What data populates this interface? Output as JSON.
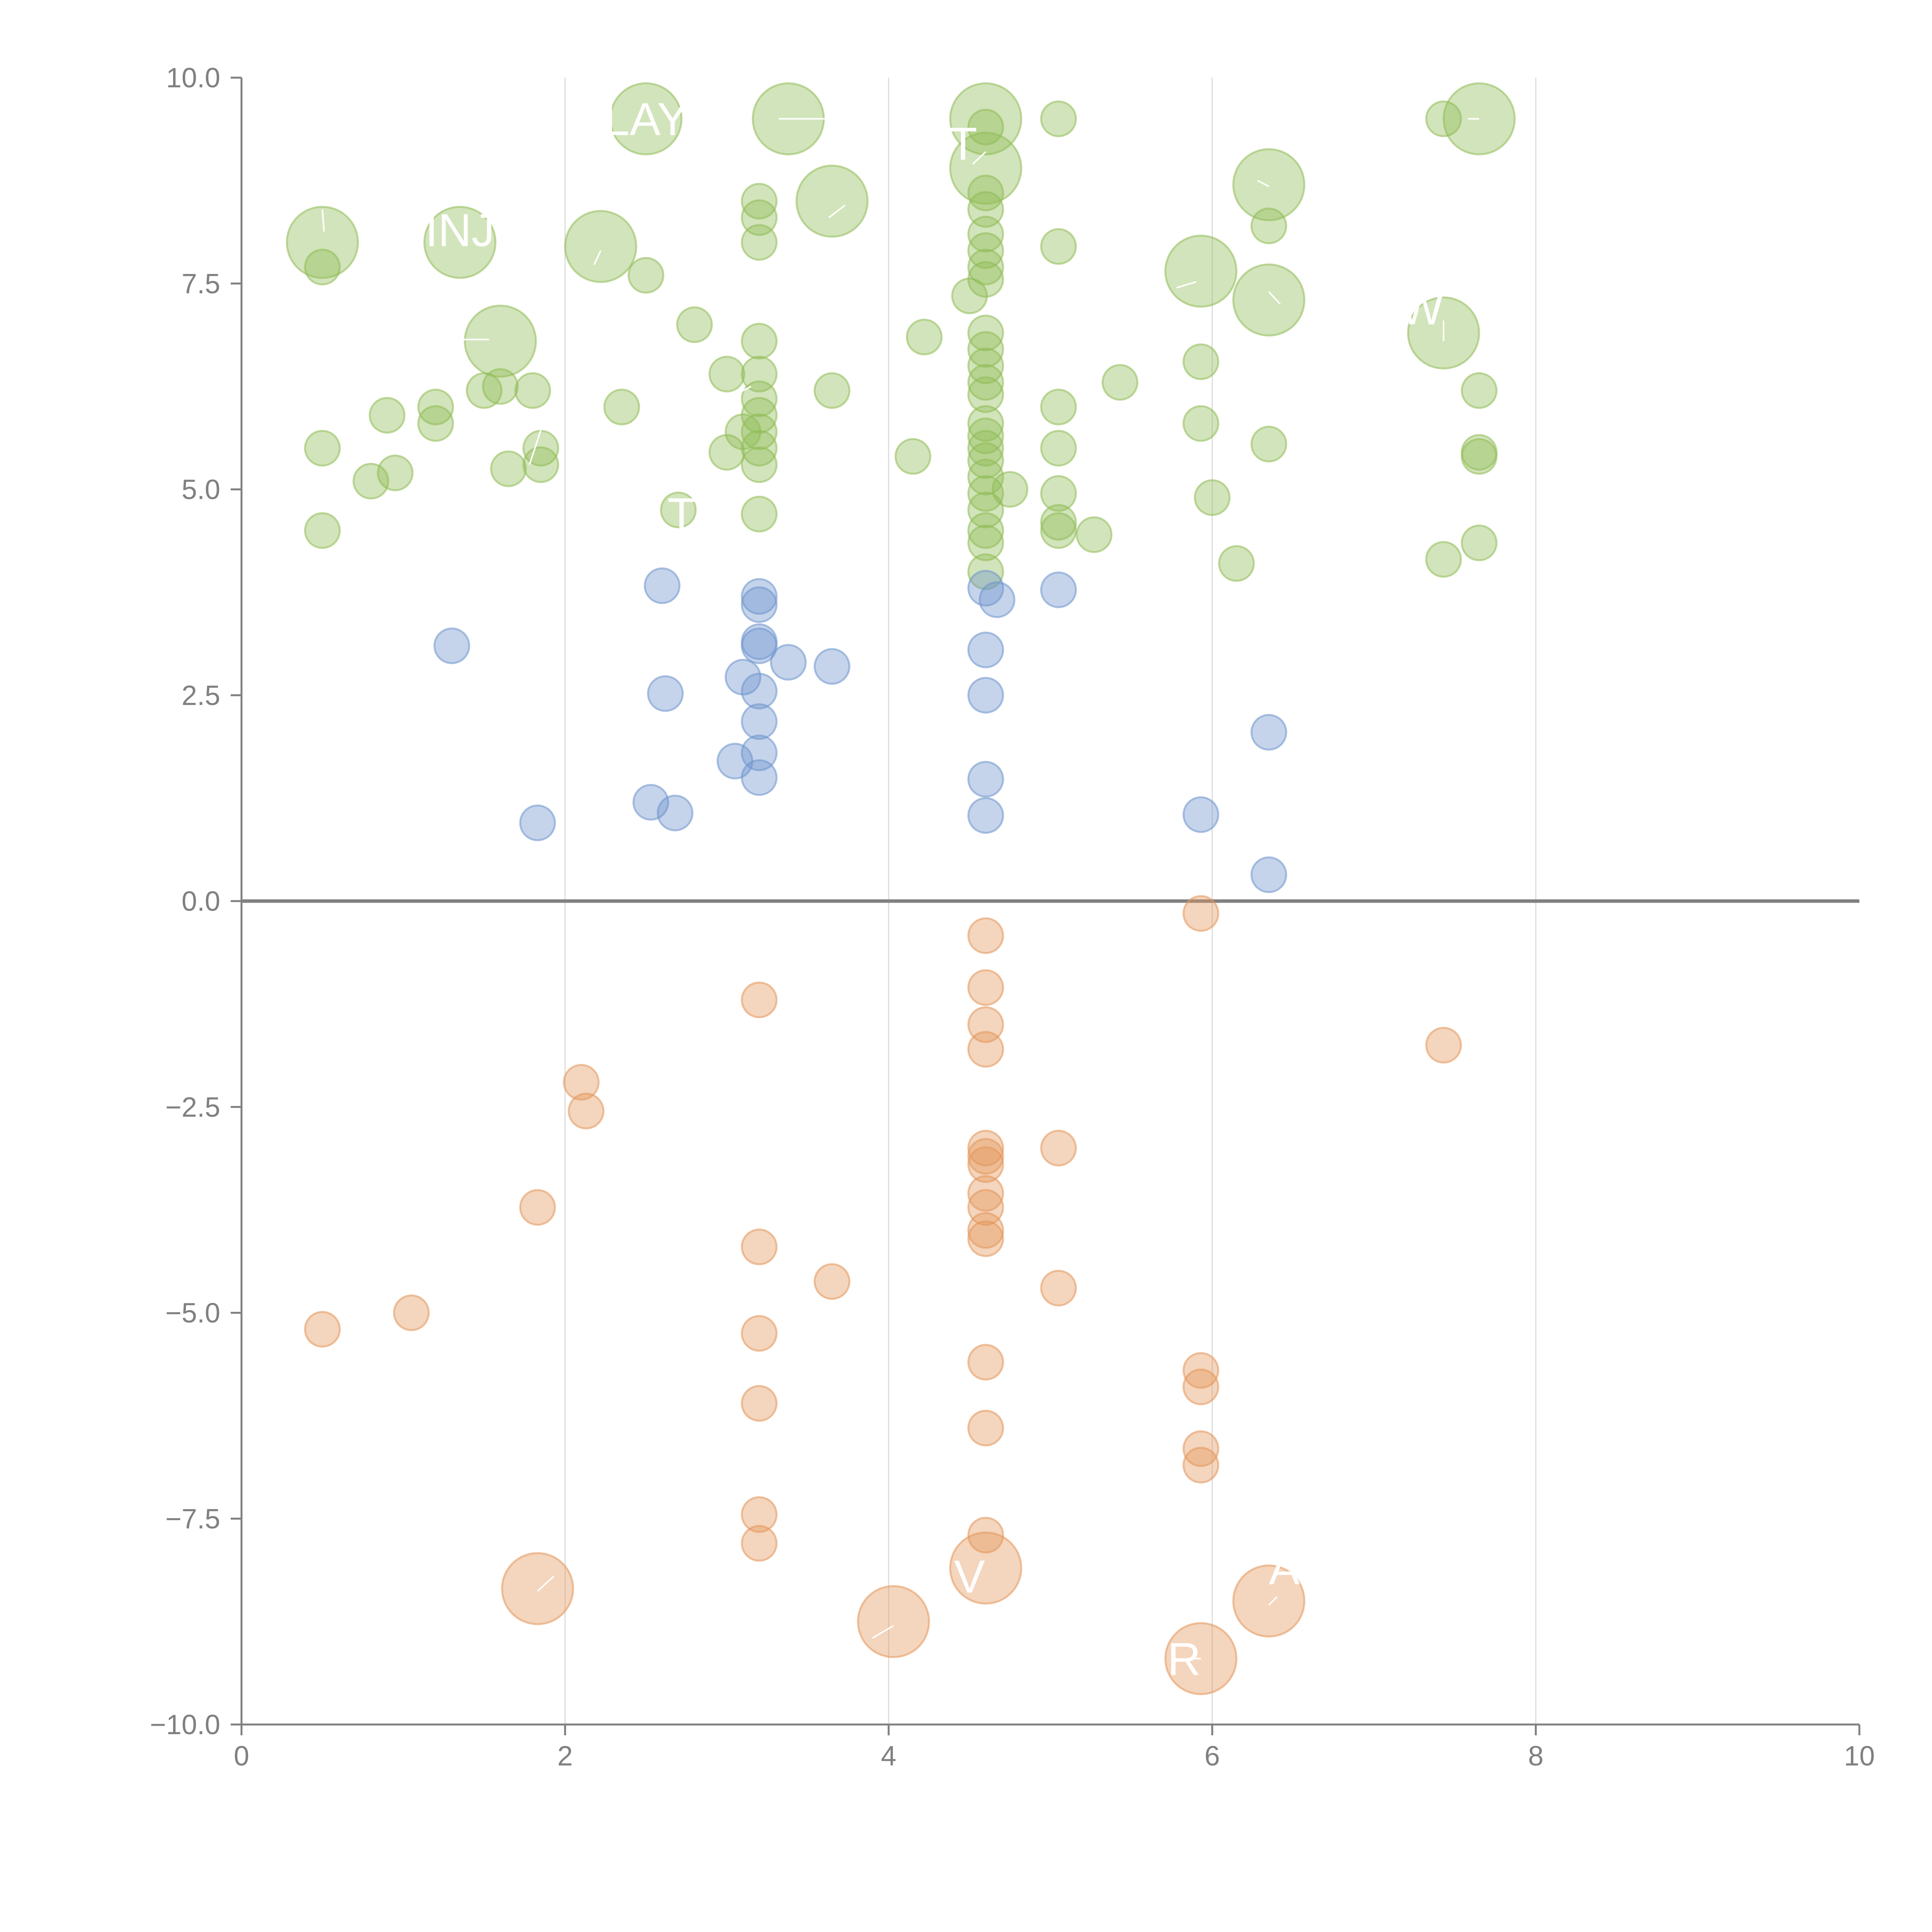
{
  "colors": {
    "positive": "#8fbc55",
    "neutral": "#6d94cc",
    "negative": "#e3965a",
    "axis": "#808080",
    "grid": "#dcdcdc",
    "leader": "#ffffff"
  },
  "chart_data": {
    "type": "scatter",
    "title": "",
    "xlabel": "",
    "ylabel": "",
    "xlim": [
      0,
      10
    ],
    "ylim": [
      -10,
      10
    ],
    "x_ticks": [
      "0",
      "2",
      "4",
      "6",
      "8",
      "10"
    ],
    "y_ticks": [
      "10.0",
      "7.5",
      "5.0",
      "2.5",
      "0.0",
      "−2.5",
      "−5.0",
      "−7.5",
      "−10.0"
    ],
    "grid_x": true,
    "grid_y": false,
    "zero_line": true,
    "series": [
      {
        "key": "positive",
        "points": [
          [
            0.5,
            7.7
          ],
          [
            0.5,
            5.5
          ],
          [
            0.5,
            4.5
          ],
          [
            0.8,
            5.1
          ],
          [
            0.9,
            5.9
          ],
          [
            0.95,
            5.2
          ],
          [
            1.2,
            6.0
          ],
          [
            1.2,
            5.8
          ],
          [
            1.5,
            6.2
          ],
          [
            1.6,
            6.25
          ],
          [
            1.65,
            5.25
          ],
          [
            1.8,
            6.2
          ],
          [
            1.85,
            5.5
          ],
          [
            1.85,
            5.3
          ],
          [
            2.35,
            6.0
          ],
          [
            2.5,
            7.6
          ],
          [
            2.8,
            7.0
          ],
          [
            2.7,
            4.75
          ],
          [
            3.0,
            6.4
          ],
          [
            3.0,
            5.45
          ],
          [
            3.1,
            5.7
          ],
          [
            3.2,
            8.5
          ],
          [
            3.2,
            8.3
          ],
          [
            3.2,
            8.0
          ],
          [
            3.2,
            6.8
          ],
          [
            3.2,
            6.4
          ],
          [
            3.2,
            6.1
          ],
          [
            3.2,
            5.9
          ],
          [
            3.2,
            5.7
          ],
          [
            3.2,
            5.5
          ],
          [
            3.2,
            5.3
          ],
          [
            3.2,
            4.7
          ],
          [
            3.65,
            6.2
          ],
          [
            4.15,
            5.4
          ],
          [
            4.22,
            6.85
          ],
          [
            4.5,
            7.35
          ],
          [
            4.6,
            9.4
          ],
          [
            4.6,
            8.6
          ],
          [
            4.6,
            8.4
          ],
          [
            4.6,
            8.1
          ],
          [
            4.6,
            7.9
          ],
          [
            4.6,
            7.7
          ],
          [
            4.6,
            7.55
          ],
          [
            4.6,
            6.9
          ],
          [
            4.6,
            6.7
          ],
          [
            4.6,
            6.5
          ],
          [
            4.6,
            6.3
          ],
          [
            4.6,
            6.15
          ],
          [
            4.6,
            5.8
          ],
          [
            4.6,
            5.65
          ],
          [
            4.6,
            5.5
          ],
          [
            4.6,
            5.35
          ],
          [
            4.6,
            5.15
          ],
          [
            4.6,
            4.95
          ],
          [
            4.6,
            4.75
          ],
          [
            4.6,
            4.5
          ],
          [
            4.6,
            4.35
          ],
          [
            4.6,
            4.0
          ],
          [
            4.75,
            5.0
          ],
          [
            5.05,
            9.5
          ],
          [
            5.05,
            7.95
          ],
          [
            5.05,
            6.0
          ],
          [
            5.05,
            5.5
          ],
          [
            5.05,
            4.95
          ],
          [
            5.05,
            4.6
          ],
          [
            5.05,
            4.5
          ],
          [
            5.27,
            4.45
          ],
          [
            5.43,
            6.3
          ],
          [
            5.93,
            6.55
          ],
          [
            5.93,
            5.8
          ],
          [
            6.0,
            4.9
          ],
          [
            6.15,
            4.1
          ],
          [
            6.35,
            8.2
          ],
          [
            6.35,
            5.55
          ],
          [
            7.43,
            9.5
          ],
          [
            7.43,
            4.15
          ],
          [
            7.65,
            6.2
          ],
          [
            7.65,
            5.45
          ],
          [
            7.65,
            5.4
          ],
          [
            7.65,
            4.35
          ]
        ],
        "big_points": [
          [
            0.5,
            8.0
          ],
          [
            1.35,
            8.0
          ],
          [
            1.6,
            6.8
          ],
          [
            2.22,
            7.95
          ],
          [
            2.5,
            9.5
          ],
          [
            3.38,
            9.5
          ],
          [
            3.65,
            8.5
          ],
          [
            4.6,
            9.5
          ],
          [
            4.6,
            8.9
          ],
          [
            5.93,
            7.65
          ],
          [
            6.35,
            8.7
          ],
          [
            6.35,
            7.3
          ],
          [
            7.43,
            6.9
          ],
          [
            7.65,
            9.5
          ]
        ]
      },
      {
        "key": "neutral",
        "points": [
          [
            1.3,
            3.1
          ],
          [
            1.83,
            0.95
          ],
          [
            2.53,
            1.2
          ],
          [
            2.6,
            3.83
          ],
          [
            2.62,
            2.52
          ],
          [
            2.68,
            1.07
          ],
          [
            3.05,
            1.7
          ],
          [
            3.1,
            2.72
          ],
          [
            3.2,
            3.7
          ],
          [
            3.2,
            3.6
          ],
          [
            3.2,
            3.15
          ],
          [
            3.2,
            3.1
          ],
          [
            3.2,
            2.55
          ],
          [
            3.2,
            2.18
          ],
          [
            3.2,
            1.8
          ],
          [
            3.2,
            1.5
          ],
          [
            3.38,
            2.9
          ],
          [
            3.65,
            2.85
          ],
          [
            4.6,
            3.8
          ],
          [
            4.6,
            3.05
          ],
          [
            4.6,
            2.5
          ],
          [
            4.6,
            1.48
          ],
          [
            4.6,
            1.04
          ],
          [
            4.67,
            3.66
          ],
          [
            5.05,
            3.78
          ],
          [
            5.93,
            1.05
          ],
          [
            6.35,
            2.05
          ],
          [
            6.35,
            0.32
          ]
        ],
        "big_points": []
      },
      {
        "key": "negative",
        "points": [
          [
            0.5,
            -5.2
          ],
          [
            1.05,
            -5.0
          ],
          [
            1.83,
            -3.72
          ],
          [
            2.1,
            -2.2
          ],
          [
            2.13,
            -2.55
          ],
          [
            3.2,
            -1.2
          ],
          [
            3.2,
            -4.2
          ],
          [
            3.2,
            -5.25
          ],
          [
            3.2,
            -6.1
          ],
          [
            3.2,
            -7.45
          ],
          [
            3.2,
            -7.8
          ],
          [
            3.65,
            -4.62
          ],
          [
            4.6,
            -0.42
          ],
          [
            4.6,
            -1.05
          ],
          [
            4.6,
            -1.5
          ],
          [
            4.6,
            -1.8
          ],
          [
            4.6,
            -3.0
          ],
          [
            4.6,
            -3.1
          ],
          [
            4.6,
            -3.2
          ],
          [
            4.6,
            -3.55
          ],
          [
            4.6,
            -3.72
          ],
          [
            4.6,
            -4.0
          ],
          [
            4.6,
            -4.1
          ],
          [
            4.6,
            -5.6
          ],
          [
            4.6,
            -6.4
          ],
          [
            4.6,
            -7.7
          ],
          [
            5.05,
            -3.0
          ],
          [
            5.05,
            -4.7
          ],
          [
            5.93,
            -0.15
          ],
          [
            5.93,
            -5.7
          ],
          [
            5.93,
            -5.9
          ],
          [
            5.93,
            -6.65
          ],
          [
            5.93,
            -6.85
          ],
          [
            7.43,
            -1.75
          ]
        ],
        "big_points": [
          [
            1.83,
            -8.35
          ],
          [
            4.03,
            -8.75
          ],
          [
            4.6,
            -8.1
          ],
          [
            5.93,
            -9.2
          ],
          [
            6.35,
            -8.5
          ]
        ]
      }
    ],
    "labels": [
      {
        "text": "INJ",
        "x": 1.35,
        "y": 8.15,
        "anchor": "middle"
      },
      {
        "text": "LAY",
        "x": 2.5,
        "y": 9.5,
        "anchor": "middle"
      },
      {
        "text": "T",
        "x": 4.46,
        "y": 9.2,
        "anchor": "middle"
      },
      {
        "text": "T",
        "x": 2.72,
        "y": 4.7,
        "anchor": "middle"
      },
      {
        "text": "OW",
        "x": 7.43,
        "y": 7.2,
        "anchor": "end"
      },
      {
        "text": "R",
        "x": 5.93,
        "y": -9.2,
        "anchor": "end"
      },
      {
        "text": "V",
        "x": 4.5,
        "y": -8.2,
        "anchor": "middle"
      },
      {
        "text": "A",
        "x": 6.35,
        "y": -8.1,
        "anchor": "start"
      }
    ],
    "leader_lines": [
      [
        [
          0.51,
          8.13
        ],
        [
          0.5,
          8.4
        ]
      ],
      [
        [
          1.53,
          6.82
        ],
        [
          1.35,
          6.82
        ]
      ],
      [
        [
          2.22,
          7.9
        ],
        [
          2.18,
          7.73
        ]
      ],
      [
        [
          1.88,
          5.9
        ],
        [
          1.78,
          5.3
        ]
      ],
      [
        [
          3.66,
          9.5
        ],
        [
          3.32,
          9.5
        ]
      ],
      [
        [
          3.73,
          8.45
        ],
        [
          3.63,
          8.3
        ]
      ],
      [
        [
          4.52,
          8.95
        ],
        [
          4.6,
          9.1
        ]
      ],
      [
        [
          5.9,
          7.52
        ],
        [
          5.78,
          7.45
        ]
      ],
      [
        [
          6.35,
          8.68
        ],
        [
          6.28,
          8.75
        ]
      ],
      [
        [
          6.35,
          7.4
        ],
        [
          6.42,
          7.25
        ]
      ],
      [
        [
          7.43,
          7.05
        ],
        [
          7.43,
          6.8
        ]
      ],
      [
        [
          7.58,
          9.5
        ],
        [
          7.65,
          9.5
        ]
      ],
      [
        [
          1.83,
          -8.38
        ],
        [
          1.93,
          -8.2
        ]
      ],
      [
        [
          4.03,
          -8.8
        ],
        [
          3.9,
          -8.95
        ]
      ],
      [
        [
          4.03,
          -9.38
        ],
        [
          4.03,
          -9.43
        ]
      ],
      [
        [
          6.35,
          -8.55
        ],
        [
          6.4,
          -8.45
        ]
      ],
      [
        [
          5.93,
          -9.2
        ],
        [
          5.85,
          -9.2
        ]
      ],
      [
        [
          3.0,
          6.1
        ],
        [
          3.15,
          6.25
        ]
      ]
    ]
  }
}
